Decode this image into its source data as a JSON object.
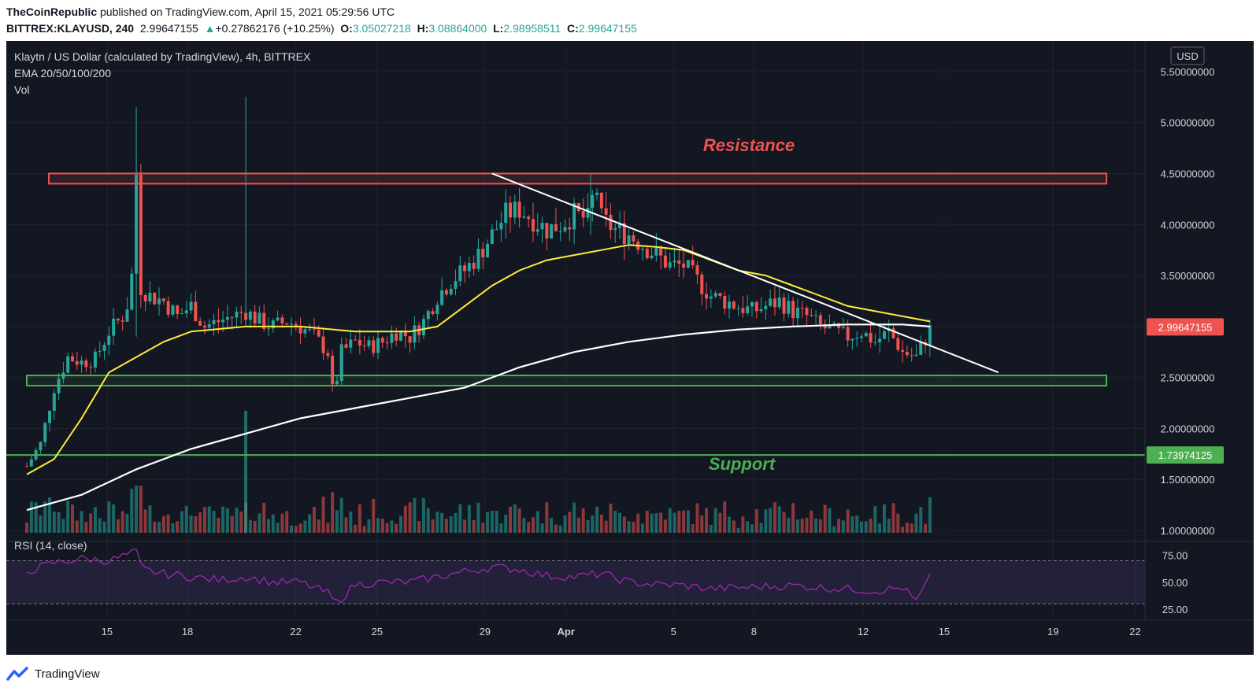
{
  "header": {
    "publisher": "TheCoinRepublic",
    "published_text": " published on TradingView.com, April 15, 2021 05:29:56 UTC",
    "symbol": "BITTREX:KLAYUSD, 240",
    "last": "2.99647155",
    "change": "+0.27862176 (+10.25%)",
    "o_label": "O:",
    "open": "3.05027218",
    "h_label": "H:",
    "high": "3.08864000",
    "l_label": "L:",
    "low": "2.98958511",
    "c_label": "C:",
    "close": "2.99647155"
  },
  "legend": {
    "title": "Klaytn / US Dollar (calculated by TradingView), 4h, BITTREX",
    "ema": "EMA 20/50/100/200",
    "vol": "Vol",
    "rsi": "RSI (14, close)"
  },
  "currency_button": "USD",
  "footer": {
    "brand": "TradingView"
  },
  "colors": {
    "background": "#131722",
    "up": "#26a69a",
    "down": "#ef5350",
    "ema50": "#ffeb3b",
    "ema200": "#ffffff",
    "resistance": "#ef5350",
    "support": "#4caf50",
    "rsi": "#9c27b0"
  },
  "chart_data": {
    "type": "candlestick",
    "title": "Klaytn / US Dollar (calculated by TradingView), 4h, BITTREX",
    "price_axis": {
      "range": [
        0.9,
        5.8
      ],
      "ticks": [
        "5.50000000",
        "5.00000000",
        "4.50000000",
        "4.00000000",
        "3.50000000",
        "3.00000000",
        "2.50000000",
        "2.00000000",
        "1.50000000",
        "1.00000000"
      ]
    },
    "time_axis": {
      "ticks": [
        "15",
        "18",
        "22",
        "25",
        "29",
        "Apr",
        "5",
        "8",
        "12",
        "15",
        "19",
        "22"
      ]
    },
    "price_path": [
      {
        "d": 12.0,
        "p": 1.63
      },
      {
        "d": 12.5,
        "p": 1.85
      },
      {
        "d": 13.0,
        "p": 2.4
      },
      {
        "d": 13.5,
        "p": 2.7
      },
      {
        "d": 14.0,
        "p": 2.65
      },
      {
        "d": 14.5,
        "p": 2.68
      },
      {
        "d": 15.0,
        "p": 2.95
      },
      {
        "d": 15.5,
        "p": 3.1
      },
      {
        "d": 15.8,
        "p": 3.3
      },
      {
        "d": 16.0,
        "p": 4.5
      },
      {
        "d": 16.1,
        "p": 3.4
      },
      {
        "d": 16.5,
        "p": 3.3
      },
      {
        "d": 17.0,
        "p": 3.25
      },
      {
        "d": 17.5,
        "p": 3.1
      },
      {
        "d": 18.0,
        "p": 3.2
      },
      {
        "d": 18.5,
        "p": 3.0
      },
      {
        "d": 19.0,
        "p": 3.05
      },
      {
        "d": 19.5,
        "p": 3.1
      },
      {
        "d": 20.0,
        "p": 3.15
      },
      {
        "d": 20.5,
        "p": 3.05
      },
      {
        "d": 21.0,
        "p": 3.0
      },
      {
        "d": 21.5,
        "p": 3.05
      },
      {
        "d": 22.0,
        "p": 3.0
      },
      {
        "d": 22.5,
        "p": 2.9
      },
      {
        "d": 23.0,
        "p": 2.75
      },
      {
        "d": 23.2,
        "p": 2.3
      },
      {
        "d": 23.5,
        "p": 2.75
      },
      {
        "d": 24.0,
        "p": 2.85
      },
      {
        "d": 24.5,
        "p": 2.8
      },
      {
        "d": 25.0,
        "p": 2.85
      },
      {
        "d": 25.5,
        "p": 2.95
      },
      {
        "d": 26.0,
        "p": 2.9
      },
      {
        "d": 26.5,
        "p": 3.05
      },
      {
        "d": 27.0,
        "p": 3.3
      },
      {
        "d": 27.5,
        "p": 3.45
      },
      {
        "d": 28.0,
        "p": 3.55
      },
      {
        "d": 28.5,
        "p": 3.7
      },
      {
        "d": 29.0,
        "p": 3.9
      },
      {
        "d": 29.5,
        "p": 4.1
      },
      {
        "d": 30.0,
        "p": 4.15
      },
      {
        "d": 30.5,
        "p": 4.05
      },
      {
        "d": 31.0,
        "p": 3.95
      },
      {
        "d": 31.5,
        "p": 4.0
      },
      {
        "d": 32.0,
        "p": 4.1
      },
      {
        "d": 32.5,
        "p": 4.05
      },
      {
        "d": 32.8,
        "p": 4.4
      },
      {
        "d": 33.0,
        "p": 4.05
      },
      {
        "d": 33.5,
        "p": 3.95
      },
      {
        "d": 34.0,
        "p": 3.9
      },
      {
        "d": 34.5,
        "p": 3.8
      },
      {
        "d": 35.0,
        "p": 3.7
      },
      {
        "d": 35.5,
        "p": 3.6
      },
      {
        "d": 36.0,
        "p": 3.6
      },
      {
        "d": 36.5,
        "p": 3.45
      },
      {
        "d": 37.0,
        "p": 3.3
      },
      {
        "d": 37.5,
        "p": 3.25
      },
      {
        "d": 38.0,
        "p": 3.2
      },
      {
        "d": 38.5,
        "p": 3.15
      },
      {
        "d": 39.0,
        "p": 3.2
      },
      {
        "d": 39.5,
        "p": 3.25
      },
      {
        "d": 40.0,
        "p": 3.15
      },
      {
        "d": 40.5,
        "p": 3.1
      },
      {
        "d": 41.0,
        "p": 3.0
      },
      {
        "d": 41.5,
        "p": 2.95
      },
      {
        "d": 42.0,
        "p": 2.9
      },
      {
        "d": 42.5,
        "p": 2.95
      },
      {
        "d": 43.0,
        "p": 2.85
      },
      {
        "d": 43.5,
        "p": 2.95
      },
      {
        "d": 44.0,
        "p": 2.75
      },
      {
        "d": 44.5,
        "p": 2.7
      },
      {
        "d": 45.0,
        "p": 2.97
      }
    ],
    "ema_50": [
      {
        "d": 12.0,
        "p": 1.55
      },
      {
        "d": 13.0,
        "p": 1.7
      },
      {
        "d": 14.0,
        "p": 2.1
      },
      {
        "d": 15.0,
        "p": 2.55
      },
      {
        "d": 16.0,
        "p": 2.7
      },
      {
        "d": 17.0,
        "p": 2.85
      },
      {
        "d": 18.0,
        "p": 2.95
      },
      {
        "d": 20.0,
        "p": 3.0
      },
      {
        "d": 22.0,
        "p": 3.0
      },
      {
        "d": 24.0,
        "p": 2.95
      },
      {
        "d": 26.0,
        "p": 2.95
      },
      {
        "d": 27.0,
        "p": 3.0
      },
      {
        "d": 28.0,
        "p": 3.2
      },
      {
        "d": 29.0,
        "p": 3.4
      },
      {
        "d": 30.0,
        "p": 3.55
      },
      {
        "d": 31.0,
        "p": 3.65
      },
      {
        "d": 32.0,
        "p": 3.7
      },
      {
        "d": 33.0,
        "p": 3.75
      },
      {
        "d": 34.0,
        "p": 3.8
      },
      {
        "d": 35.0,
        "p": 3.78
      },
      {
        "d": 36.0,
        "p": 3.75
      },
      {
        "d": 37.0,
        "p": 3.65
      },
      {
        "d": 38.0,
        "p": 3.55
      },
      {
        "d": 39.0,
        "p": 3.5
      },
      {
        "d": 40.0,
        "p": 3.4
      },
      {
        "d": 41.0,
        "p": 3.3
      },
      {
        "d": 42.0,
        "p": 3.2
      },
      {
        "d": 43.0,
        "p": 3.15
      },
      {
        "d": 44.0,
        "p": 3.1
      },
      {
        "d": 45.0,
        "p": 3.05
      }
    ],
    "ema_200": [
      {
        "d": 12.0,
        "p": 1.2
      },
      {
        "d": 14.0,
        "p": 1.35
      },
      {
        "d": 16.0,
        "p": 1.6
      },
      {
        "d": 18.0,
        "p": 1.8
      },
      {
        "d": 20.0,
        "p": 1.95
      },
      {
        "d": 22.0,
        "p": 2.1
      },
      {
        "d": 24.0,
        "p": 2.2
      },
      {
        "d": 26.0,
        "p": 2.3
      },
      {
        "d": 28.0,
        "p": 2.4
      },
      {
        "d": 30.0,
        "p": 2.6
      },
      {
        "d": 32.0,
        "p": 2.75
      },
      {
        "d": 34.0,
        "p": 2.85
      },
      {
        "d": 36.0,
        "p": 2.92
      },
      {
        "d": 38.0,
        "p": 2.97
      },
      {
        "d": 40.0,
        "p": 3.0
      },
      {
        "d": 42.0,
        "p": 3.02
      },
      {
        "d": 44.0,
        "p": 3.02
      },
      {
        "d": 45.0,
        "p": 3.0
      }
    ],
    "resistance_zone": {
      "price": [
        4.4,
        4.5
      ],
      "label": "Resistance"
    },
    "support_zone": {
      "price": [
        2.42,
        2.52
      ]
    },
    "support_line": {
      "price": 1.73974125,
      "label": "Support",
      "tag": "1.73974125"
    },
    "trendline": [
      {
        "d": 29.0,
        "p": 4.5
      },
      {
        "d": 47.5,
        "p": 2.55
      }
    ],
    "current_price_tag": "2.99647155",
    "rsi": {
      "range": [
        25,
        85
      ],
      "ticks": [
        "75.00",
        "50.00",
        "25.00"
      ],
      "band": [
        30,
        70
      ],
      "path": [
        {
          "d": 12.0,
          "p": 60
        },
        {
          "d": 13.0,
          "p": 68
        },
        {
          "d": 14.0,
          "p": 72
        },
        {
          "d": 15.0,
          "p": 70
        },
        {
          "d": 16.0,
          "p": 78
        },
        {
          "d": 16.2,
          "p": 62
        },
        {
          "d": 17.0,
          "p": 58
        },
        {
          "d": 18.0,
          "p": 55
        },
        {
          "d": 19.0,
          "p": 52
        },
        {
          "d": 20.0,
          "p": 55
        },
        {
          "d": 21.0,
          "p": 50
        },
        {
          "d": 22.0,
          "p": 50
        },
        {
          "d": 23.0,
          "p": 40
        },
        {
          "d": 23.3,
          "p": 30
        },
        {
          "d": 24.0,
          "p": 48
        },
        {
          "d": 25.0,
          "p": 50
        },
        {
          "d": 26.0,
          "p": 50
        },
        {
          "d": 27.0,
          "p": 55
        },
        {
          "d": 28.0,
          "p": 60
        },
        {
          "d": 29.0,
          "p": 64
        },
        {
          "d": 30.0,
          "p": 62
        },
        {
          "d": 31.0,
          "p": 56
        },
        {
          "d": 32.0,
          "p": 55
        },
        {
          "d": 33.0,
          "p": 58
        },
        {
          "d": 34.0,
          "p": 50
        },
        {
          "d": 35.0,
          "p": 48
        },
        {
          "d": 36.0,
          "p": 47
        },
        {
          "d": 37.0,
          "p": 44
        },
        {
          "d": 38.0,
          "p": 45
        },
        {
          "d": 39.0,
          "p": 46
        },
        {
          "d": 40.0,
          "p": 47
        },
        {
          "d": 41.0,
          "p": 45
        },
        {
          "d": 42.0,
          "p": 44
        },
        {
          "d": 43.0,
          "p": 42
        },
        {
          "d": 44.0,
          "p": 45
        },
        {
          "d": 44.5,
          "p": 32
        },
        {
          "d": 45.0,
          "p": 54
        }
      ]
    }
  }
}
